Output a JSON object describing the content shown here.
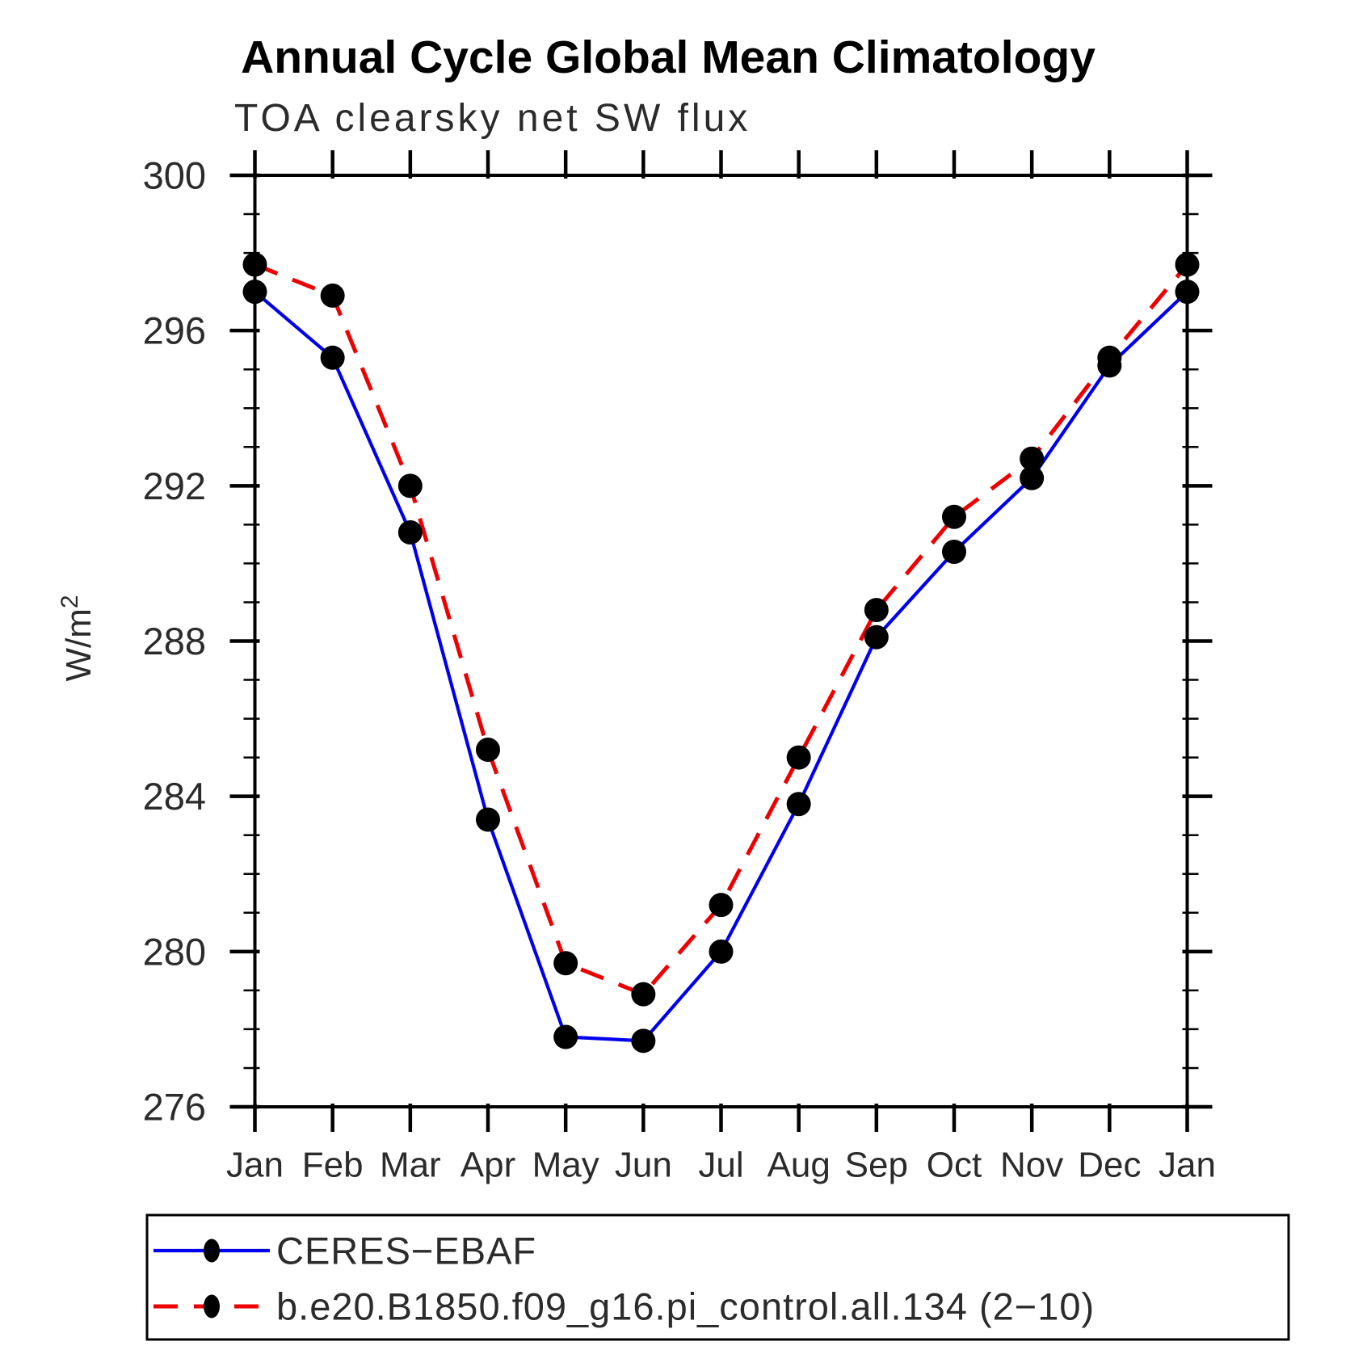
{
  "chart_data": {
    "type": "line",
    "title": "Annual Cycle Global Mean Climatology",
    "subtitle": "TOA clearsky net SW flux",
    "ylabel": "W/m²",
    "ylabel_parts": {
      "base": "W/m",
      "exp": "2"
    },
    "categories": [
      "Jan",
      "Feb",
      "Mar",
      "Apr",
      "May",
      "Jun",
      "Jul",
      "Aug",
      "Sep",
      "Oct",
      "Nov",
      "Dec",
      "Jan"
    ],
    "series": [
      {
        "name": "CERES−EBAF",
        "color": "#0000ee",
        "line_style": "solid",
        "values": [
          297.0,
          295.3,
          290.8,
          283.4,
          277.8,
          277.7,
          280.0,
          283.8,
          288.1,
          290.3,
          292.2,
          295.1,
          297.0
        ]
      },
      {
        "name": "b.e20.B1850.f09_g16.pi_control.all.134 (2−10)",
        "color": "#ee0000",
        "line_style": "dashed",
        "values": [
          297.7,
          296.9,
          292.0,
          285.2,
          279.7,
          278.9,
          281.2,
          285.0,
          288.8,
          291.2,
          292.7,
          295.3,
          297.7
        ]
      }
    ],
    "marker": {
      "shape": "circle",
      "color": "#000000"
    },
    "ylim": [
      276,
      300
    ],
    "yticks_major": [
      276,
      280,
      284,
      288,
      292,
      296,
      300
    ],
    "ytick_minor_interval": 1,
    "grid": "off",
    "legend_position": "bottom-left"
  }
}
